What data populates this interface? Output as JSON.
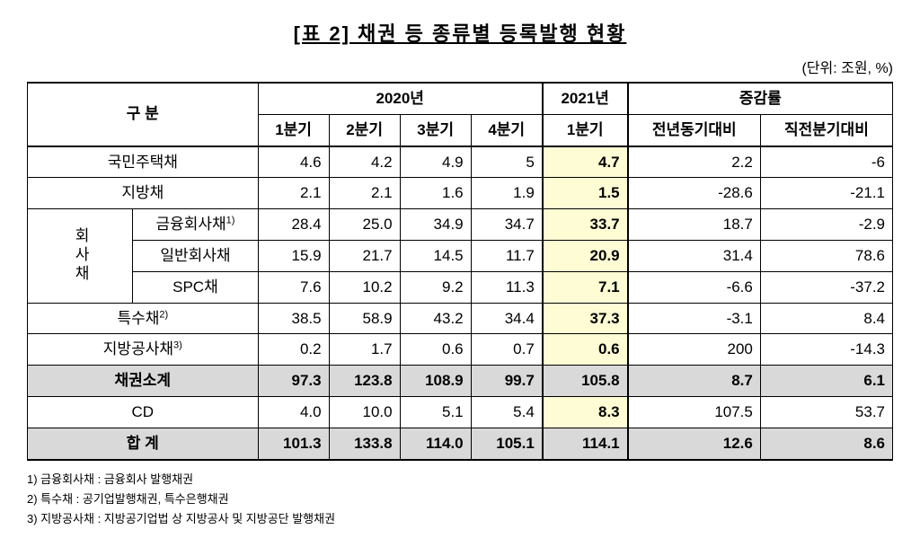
{
  "title": "[표 2] 채권 등 종류별 등록발행 현황",
  "unit": "(단위: 조원, %)",
  "header": {
    "category": "구  분",
    "y2020": "2020년",
    "y2021": "2021년",
    "rate": "증감률",
    "q1": "1분기",
    "q2": "2분기",
    "q3": "3분기",
    "q4": "4분기",
    "q1_2021": "1분기",
    "yoy": "전년동기대비",
    "qoq": "직전분기대비"
  },
  "rows": {
    "r0": {
      "label": "국민주택채",
      "q1": "4.6",
      "q2": "4.2",
      "q3": "4.9",
      "q4": "5",
      "q2021": "4.7",
      "yoy": "2.2",
      "qoq": "-6"
    },
    "r1": {
      "label": "지방채",
      "q1": "2.1",
      "q2": "2.1",
      "q3": "1.6",
      "q4": "1.9",
      "q2021": "1.5",
      "yoy": "-28.6",
      "qoq": "-21.1"
    },
    "g1": {
      "label": "회사채"
    },
    "r2": {
      "label_html": "금융회사채<sup>1)</sup>",
      "q1": "28.4",
      "q2": "25.0",
      "q3": "34.9",
      "q4": "34.7",
      "q2021": "33.7",
      "yoy": "18.7",
      "qoq": "-2.9"
    },
    "r3": {
      "label": "일반회사채",
      "q1": "15.9",
      "q2": "21.7",
      "q3": "14.5",
      "q4": "11.7",
      "q2021": "20.9",
      "yoy": "31.4",
      "qoq": "78.6"
    },
    "r4": {
      "label": "SPC채",
      "q1": "7.6",
      "q2": "10.2",
      "q3": "9.2",
      "q4": "11.3",
      "q2021": "7.1",
      "yoy": "-6.6",
      "qoq": "-37.2"
    },
    "r5": {
      "label_html": "특수채<sup>2)</sup>",
      "q1": "38.5",
      "q2": "58.9",
      "q3": "43.2",
      "q4": "34.4",
      "q2021": "37.3",
      "yoy": "-3.1",
      "qoq": "8.4"
    },
    "r6": {
      "label_html": "지방공사채<sup>3)</sup>",
      "q1": "0.2",
      "q2": "1.7",
      "q3": "0.6",
      "q4": "0.7",
      "q2021": "0.6",
      "yoy": "200",
      "qoq": "-14.3"
    },
    "sub": {
      "label": "채권소계",
      "q1": "97.3",
      "q2": "123.8",
      "q3": "108.9",
      "q4": "99.7",
      "q2021": "105.8",
      "yoy": "8.7",
      "qoq": "6.1"
    },
    "r7": {
      "label": "CD",
      "q1": "4.0",
      "q2": "10.0",
      "q3": "5.1",
      "q4": "5.4",
      "q2021": "8.3",
      "yoy": "107.5",
      "qoq": "53.7"
    },
    "tot": {
      "label": "합  계",
      "q1": "101.3",
      "q2": "133.8",
      "q3": "114.0",
      "q4": "105.1",
      "q2021": "114.1",
      "yoy": "12.6",
      "qoq": "8.6"
    }
  },
  "footnotes": {
    "f1": "1) 금융회사채 : 금융회사 발행채권",
    "f2": "2) 특수채 : 공기업발행채권, 특수은행채권",
    "f3": "3) 지방공사채 : 지방공기업법 상 지방공사 및 지방공단 발행채권"
  },
  "colors": {
    "highlight": "#fdfcd4",
    "gray": "#d9d9d9",
    "border": "#000000",
    "background": "#ffffff"
  }
}
